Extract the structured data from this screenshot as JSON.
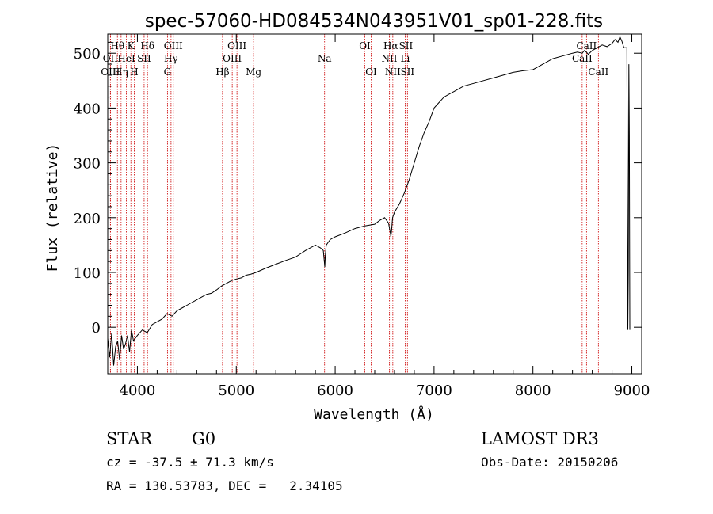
{
  "chart_data": {
    "type": "line",
    "title": "spec-57060-HD084534N043951V01_sp01-228.fits",
    "xlabel": "Wavelength (Å)",
    "ylabel": "Flux (relative)",
    "xlim": [
      3700,
      9100
    ],
    "ylim": [
      -85,
      535
    ],
    "xticks": [
      4000,
      5000,
      6000,
      7000,
      8000,
      9000
    ],
    "yticks": [
      0,
      100,
      200,
      300,
      400,
      500
    ],
    "series": [
      {
        "name": "spectrum",
        "x": [
          3700,
          3720,
          3740,
          3760,
          3780,
          3800,
          3820,
          3840,
          3860,
          3880,
          3900,
          3920,
          3940,
          3960,
          3980,
          4000,
          4050,
          4100,
          4150,
          4200,
          4250,
          4300,
          4350,
          4400,
          4450,
          4500,
          4550,
          4600,
          4650,
          4700,
          4750,
          4800,
          4850,
          4900,
          4950,
          5000,
          5050,
          5100,
          5150,
          5200,
          5300,
          5400,
          5500,
          5600,
          5700,
          5800,
          5850,
          5880,
          5895,
          5900,
          5910,
          5950,
          6000,
          6100,
          6200,
          6300,
          6400,
          6450,
          6500,
          6540,
          6550,
          6560,
          6563,
          6570,
          6580,
          6600,
          6650,
          6700,
          6750,
          6800,
          6850,
          6900,
          6950,
          7000,
          7050,
          7100,
          7150,
          7200,
          7300,
          7400,
          7500,
          7600,
          7700,
          7800,
          7900,
          8000,
          8100,
          8200,
          8300,
          8400,
          8450,
          8498,
          8520,
          8540,
          8560,
          8600,
          8650,
          8700,
          8750,
          8800,
          8830,
          8860,
          8880,
          8900,
          8920,
          8950,
          8960,
          8965,
          8970,
          8975,
          8980
        ],
        "y": [
          -20,
          -55,
          -10,
          -70,
          -35,
          -25,
          -60,
          -15,
          -40,
          -30,
          -15,
          -45,
          -5,
          -25,
          -20,
          -15,
          -5,
          -10,
          5,
          10,
          15,
          25,
          20,
          30,
          35,
          40,
          45,
          50,
          55,
          60,
          62,
          68,
          75,
          80,
          85,
          88,
          90,
          95,
          97,
          100,
          108,
          115,
          122,
          128,
          140,
          150,
          145,
          140,
          110,
          130,
          150,
          160,
          165,
          172,
          180,
          185,
          188,
          195,
          200,
          190,
          180,
          170,
          165,
          175,
          200,
          210,
          225,
          245,
          270,
          300,
          330,
          355,
          375,
          400,
          410,
          420,
          425,
          430,
          440,
          445,
          450,
          455,
          460,
          465,
          468,
          470,
          480,
          490,
          495,
          500,
          502,
          500,
          505,
          502,
          498,
          505,
          510,
          515,
          512,
          518,
          525,
          520,
          530,
          522,
          510,
          510,
          -5,
          100,
          480,
          350,
          -5
        ]
      }
    ],
    "lines": [
      {
        "name": "Hθ",
        "wave": 3798,
        "row": 1
      },
      {
        "name": "OII",
        "wave": 3727,
        "row": 2
      },
      {
        "name": "OIII",
        "wave": 3727,
        "row": 3
      },
      {
        "name": "K",
        "wave": 3934,
        "row": 1
      },
      {
        "name": "HeI",
        "wave": 3889,
        "row": 2
      },
      {
        "name": "Hη",
        "wave": 3835,
        "row": 3
      },
      {
        "name": "SII",
        "wave": 4068,
        "row": 2
      },
      {
        "name": "H",
        "wave": 3968,
        "row": 3
      },
      {
        "name": "Hδ",
        "wave": 4102,
        "row": 1
      },
      {
        "name": "OIII",
        "wave": 4363,
        "row": 1
      },
      {
        "name": "Hγ",
        "wave": 4340,
        "row": 2
      },
      {
        "name": "G",
        "wave": 4304,
        "row": 3
      },
      {
        "name": "OIII",
        "wave": 5007,
        "row": 1
      },
      {
        "name": "OIII",
        "wave": 4959,
        "row": 2
      },
      {
        "name": "Hβ",
        "wave": 4861,
        "row": 3
      },
      {
        "name": "Mg",
        "wave": 5175,
        "row": 3
      },
      {
        "name": "Na",
        "wave": 5893,
        "row": 2
      },
      {
        "name": "OI",
        "wave": 6300,
        "row": 1
      },
      {
        "name": "OI",
        "wave": 6364,
        "row": 3
      },
      {
        "name": "Hα",
        "wave": 6563,
        "row": 1
      },
      {
        "name": "SII",
        "wave": 6716,
        "row": 1
      },
      {
        "name": "NII",
        "wave": 6548,
        "row": 2
      },
      {
        "name": "Li",
        "wave": 6708,
        "row": 2
      },
      {
        "name": "NII",
        "wave": 6583,
        "row": 3
      },
      {
        "name": "SII",
        "wave": 6731,
        "row": 3
      },
      {
        "name": "CaII",
        "wave": 8542,
        "row": 1
      },
      {
        "name": "CaII",
        "wave": 8498,
        "row": 2
      },
      {
        "name": "CaII",
        "wave": 8662,
        "row": 3
      }
    ]
  },
  "footer": {
    "class_label": "STAR",
    "subclass": "G0",
    "survey": "LAMOST DR3",
    "cz": "cz = -37.5 ± 71.3 km/s",
    "obs_date": "Obs-Date: 20150206",
    "coords": "RA = 130.53783, DEC =   2.34105"
  },
  "colors": {
    "spectrum": "#000000",
    "line_marker": "#cc0000"
  }
}
